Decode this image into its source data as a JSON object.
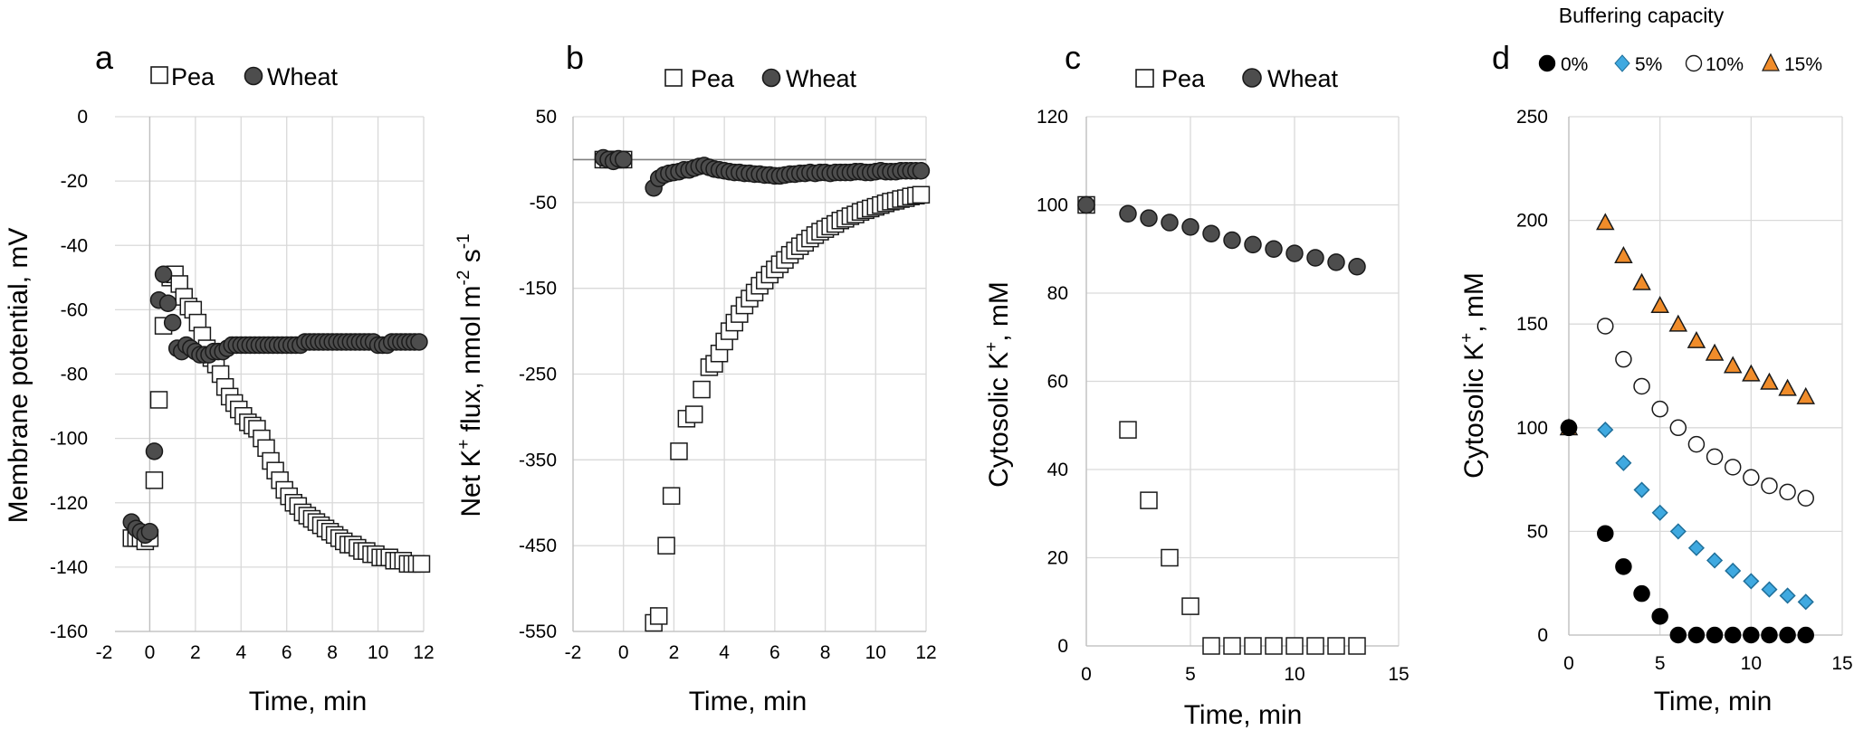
{
  "colors": {
    "pea_fill": "#ffffff",
    "wheat_fill": "#4d4d4d",
    "marker_stroke": "#1a1a1a",
    "bc0": "#000000",
    "bc5": "#3fa9e0",
    "bc10": "#ffffff",
    "bc15": "#f08c2a"
  },
  "chart_data": [
    {
      "panel": "a",
      "type": "scatter",
      "xlabel": "Time, min",
      "ylabel": "Membrane potential, mV",
      "xlim": [
        -2,
        12
      ],
      "ylim": [
        -160,
        0
      ],
      "xticks": [
        "-2",
        "0",
        "2",
        "4",
        "6",
        "8",
        "10",
        "12"
      ],
      "yticks": [
        "0",
        "-20",
        "-40",
        "-60",
        "-80",
        "-100",
        "-120",
        "-140",
        "-160"
      ],
      "series": [
        {
          "name": "Pea",
          "marker": "square",
          "x": [
            -0.8,
            -0.6,
            -0.4,
            -0.2,
            0,
            0.2,
            0.4,
            0.6,
            0.9,
            1.1,
            1.3,
            1.5,
            1.7,
            1.9,
            2.1,
            2.3,
            2.5,
            2.7,
            2.9,
            3.1,
            3.3,
            3.5,
            3.7,
            3.9,
            4.1,
            4.3,
            4.5,
            4.7,
            4.9,
            5.1,
            5.3,
            5.5,
            5.7,
            5.9,
            6.1,
            6.3,
            6.5,
            6.7,
            6.9,
            7.1,
            7.3,
            7.5,
            7.7,
            7.9,
            8.1,
            8.3,
            8.5,
            8.7,
            8.9,
            9.1,
            9.3,
            9.5,
            9.7,
            9.9,
            10.1,
            10.3,
            10.5,
            10.7,
            10.9,
            11.1,
            11.3,
            11.5,
            11.7,
            11.9
          ],
          "y": [
            -131,
            -131,
            -131,
            -132,
            -131,
            -113,
            -88,
            -65,
            -50,
            -49,
            -52,
            -56,
            -59,
            -60,
            -64,
            -68,
            -72,
            -75,
            -77,
            -80,
            -84,
            -87,
            -89,
            -91,
            -93,
            -95,
            -96,
            -97,
            -100,
            -103,
            -107,
            -110,
            -113,
            -116,
            -118,
            -120,
            -121,
            -123,
            -124,
            -125,
            -126,
            -127,
            -128,
            -129,
            -130,
            -131,
            -132,
            -133,
            -133,
            -134,
            -135,
            -135,
            -136,
            -136,
            -137,
            -137,
            -137,
            -138,
            -138,
            -138,
            -139,
            -139,
            -139,
            -139
          ]
        },
        {
          "name": "Wheat",
          "marker": "circle",
          "x": [
            -0.8,
            -0.6,
            -0.4,
            -0.2,
            0,
            0.2,
            0.4,
            0.6,
            0.8,
            1.0,
            1.2,
            1.4,
            1.6,
            1.8,
            2.0,
            2.2,
            2.4,
            2.6,
            2.8,
            3.0,
            3.2,
            3.4,
            3.6,
            3.8,
            4.0,
            4.2,
            4.4,
            4.6,
            4.8,
            5.0,
            5.2,
            5.4,
            5.6,
            5.8,
            6.0,
            6.2,
            6.4,
            6.6,
            6.8,
            7.0,
            7.2,
            7.4,
            7.6,
            7.8,
            8.0,
            8.2,
            8.4,
            8.6,
            8.8,
            9.0,
            9.2,
            9.4,
            9.6,
            9.8,
            10.0,
            10.2,
            10.4,
            10.6,
            10.8,
            11.0,
            11.2,
            11.4,
            11.6,
            11.8
          ],
          "y": [
            -126,
            -128,
            -129,
            -130,
            -129,
            -104,
            -57,
            -49,
            -58,
            -64,
            -72,
            -73,
            -71,
            -72,
            -73,
            -74,
            -74,
            -74,
            -73,
            -73,
            -73,
            -72,
            -71,
            -71,
            -71,
            -71,
            -71,
            -71,
            -71,
            -71,
            -71,
            -71,
            -71,
            -71,
            -71,
            -71,
            -71,
            -71,
            -70,
            -70,
            -70,
            -70,
            -70,
            -70,
            -70,
            -70,
            -70,
            -70,
            -70,
            -70,
            -70,
            -70,
            -70,
            -70,
            -71,
            -71,
            -71,
            -70,
            -70,
            -70,
            -70,
            -70,
            -70,
            -70
          ]
        }
      ]
    },
    {
      "panel": "b",
      "type": "scatter",
      "xlabel": "Time, min",
      "ylabel_main": "Net K",
      "ylabel_sup1": "+",
      "ylabel_mid": " flux, nmol m",
      "ylabel_sup2": "-2",
      "ylabel_mid2": " s",
      "ylabel_sup3": "-1",
      "xlim": [
        -2,
        12
      ],
      "ylim": [
        -550,
        50
      ],
      "xticks": [
        "-2",
        "0",
        "2",
        "4",
        "6",
        "8",
        "10",
        "12"
      ],
      "yticks": [
        "50",
        "-50",
        "-150",
        "-250",
        "-350",
        "-450",
        "-550"
      ],
      "series": [
        {
          "name": "Pea",
          "marker": "square",
          "x": [
            -0.8,
            -0.6,
            -0.4,
            -0.2,
            0,
            1.2,
            1.4,
            1.7,
            1.9,
            2.2,
            2.5,
            2.8,
            3.1,
            3.4,
            3.6,
            3.8,
            4.0,
            4.2,
            4.4,
            4.6,
            4.8,
            5.0,
            5.2,
            5.4,
            5.6,
            5.8,
            6.0,
            6.2,
            6.4,
            6.6,
            6.8,
            7.0,
            7.2,
            7.4,
            7.6,
            7.8,
            8.0,
            8.2,
            8.4,
            8.6,
            8.8,
            9.0,
            9.2,
            9.4,
            9.6,
            9.8,
            10.0,
            10.2,
            10.4,
            10.6,
            10.8,
            11.0,
            11.2,
            11.4,
            11.6,
            11.8
          ],
          "y": [
            0,
            0,
            0,
            0,
            0,
            -540,
            -532,
            -450,
            -392,
            -340,
            -302,
            -297,
            -268,
            -242,
            -238,
            -226,
            -212,
            -200,
            -190,
            -180,
            -170,
            -162,
            -155,
            -147,
            -141,
            -134,
            -128,
            -122,
            -117,
            -111,
            -106,
            -101,
            -97,
            -92,
            -88,
            -84,
            -81,
            -78,
            -75,
            -71,
            -69,
            -66,
            -64,
            -61,
            -59,
            -57,
            -55,
            -53,
            -51,
            -49,
            -48,
            -46,
            -45,
            -43,
            -42,
            -41
          ]
        },
        {
          "name": "Wheat",
          "marker": "circle",
          "x": [
            -0.8,
            -0.6,
            -0.4,
            -0.2,
            0,
            1.2,
            1.4,
            1.6,
            1.8,
            2.0,
            2.2,
            2.4,
            2.6,
            2.8,
            3.0,
            3.2,
            3.4,
            3.6,
            3.8,
            4.0,
            4.2,
            4.4,
            4.6,
            4.8,
            5.0,
            5.2,
            5.4,
            5.6,
            5.8,
            6.0,
            6.2,
            6.4,
            6.6,
            6.8,
            7.0,
            7.2,
            7.4,
            7.6,
            7.8,
            8.0,
            8.2,
            8.4,
            8.6,
            8.8,
            9.0,
            9.2,
            9.4,
            9.6,
            9.8,
            10.0,
            10.2,
            10.4,
            10.6,
            10.8,
            11.0,
            11.2,
            11.4,
            11.6,
            11.8
          ],
          "y": [
            2,
            0,
            -2,
            1,
            0,
            -33,
            -22,
            -18,
            -16,
            -15,
            -14,
            -12,
            -12,
            -10,
            -8,
            -7,
            -9,
            -11,
            -12,
            -13,
            -14,
            -15,
            -15,
            -16,
            -16,
            -17,
            -17,
            -18,
            -18,
            -19,
            -19,
            -18,
            -17,
            -17,
            -16,
            -16,
            -15,
            -16,
            -15,
            -15,
            -16,
            -15,
            -15,
            -15,
            -15,
            -14,
            -14,
            -15,
            -15,
            -14,
            -13,
            -14,
            -14,
            -14,
            -13,
            -13,
            -13,
            -13,
            -13
          ]
        }
      ]
    },
    {
      "panel": "c",
      "type": "scatter",
      "xlabel": "Time, min",
      "ylabel_main": "Cytosolic K",
      "ylabel_sup": "+",
      "ylabel_tail": ", mM",
      "xlim": [
        0,
        15
      ],
      "ylim": [
        0,
        120
      ],
      "xticks": [
        "0",
        "5",
        "10",
        "15"
      ],
      "yticks": [
        "0",
        "20",
        "40",
        "60",
        "80",
        "100",
        "120"
      ],
      "series": [
        {
          "name": "Pea",
          "marker": "square",
          "x": [
            0,
            2,
            3,
            4,
            5,
            6,
            7,
            8,
            9,
            10,
            11,
            12,
            13
          ],
          "y": [
            100,
            49,
            33,
            20,
            9,
            0,
            0,
            0,
            0,
            0,
            0,
            0,
            0
          ]
        },
        {
          "name": "Wheat",
          "marker": "circle",
          "x": [
            0,
            2,
            3,
            4,
            5,
            6,
            7,
            8,
            9,
            10,
            11,
            12,
            13
          ],
          "y": [
            100,
            98,
            97,
            96,
            95,
            93.5,
            92,
            91,
            90,
            89,
            88,
            87,
            86
          ]
        }
      ]
    },
    {
      "panel": "d",
      "type": "scatter",
      "title": "Buffering capacity",
      "xlabel": "Time, min",
      "ylabel_main": "Cytosolic K",
      "ylabel_sup": "+",
      "ylabel_tail": ", mM",
      "xlim": [
        0,
        15
      ],
      "ylim": [
        0,
        250
      ],
      "xticks": [
        "0",
        "5",
        "10",
        "15"
      ],
      "yticks": [
        "0",
        "50",
        "100",
        "150",
        "200",
        "250"
      ],
      "series": [
        {
          "name": "0%",
          "marker": "circle",
          "x": [
            0,
            2,
            3,
            4,
            5,
            6,
            7,
            8,
            9,
            10,
            11,
            12,
            13
          ],
          "y": [
            100,
            49,
            33,
            20,
            9,
            0,
            0,
            0,
            0,
            0,
            0,
            0,
            0
          ]
        },
        {
          "name": "5%",
          "marker": "diamond",
          "x": [
            0,
            2,
            3,
            4,
            5,
            6,
            7,
            8,
            9,
            10,
            11,
            12,
            13
          ],
          "y": [
            100,
            99,
            83,
            70,
            59,
            50,
            42,
            36,
            31,
            26,
            22,
            19,
            16
          ]
        },
        {
          "name": "10%",
          "marker": "circle",
          "x": [
            0,
            2,
            3,
            4,
            5,
            6,
            7,
            8,
            9,
            10,
            11,
            12,
            13
          ],
          "y": [
            100,
            149,
            133,
            120,
            109,
            100,
            92,
            86,
            81,
            76,
            72,
            69,
            66
          ]
        },
        {
          "name": "15%",
          "marker": "triangle",
          "x": [
            0,
            2,
            3,
            4,
            5,
            6,
            7,
            8,
            9,
            10,
            11,
            12,
            13
          ],
          "y": [
            100,
            199,
            183,
            170,
            159,
            150,
            142,
            136,
            130,
            126,
            122,
            119,
            115
          ]
        }
      ]
    }
  ]
}
